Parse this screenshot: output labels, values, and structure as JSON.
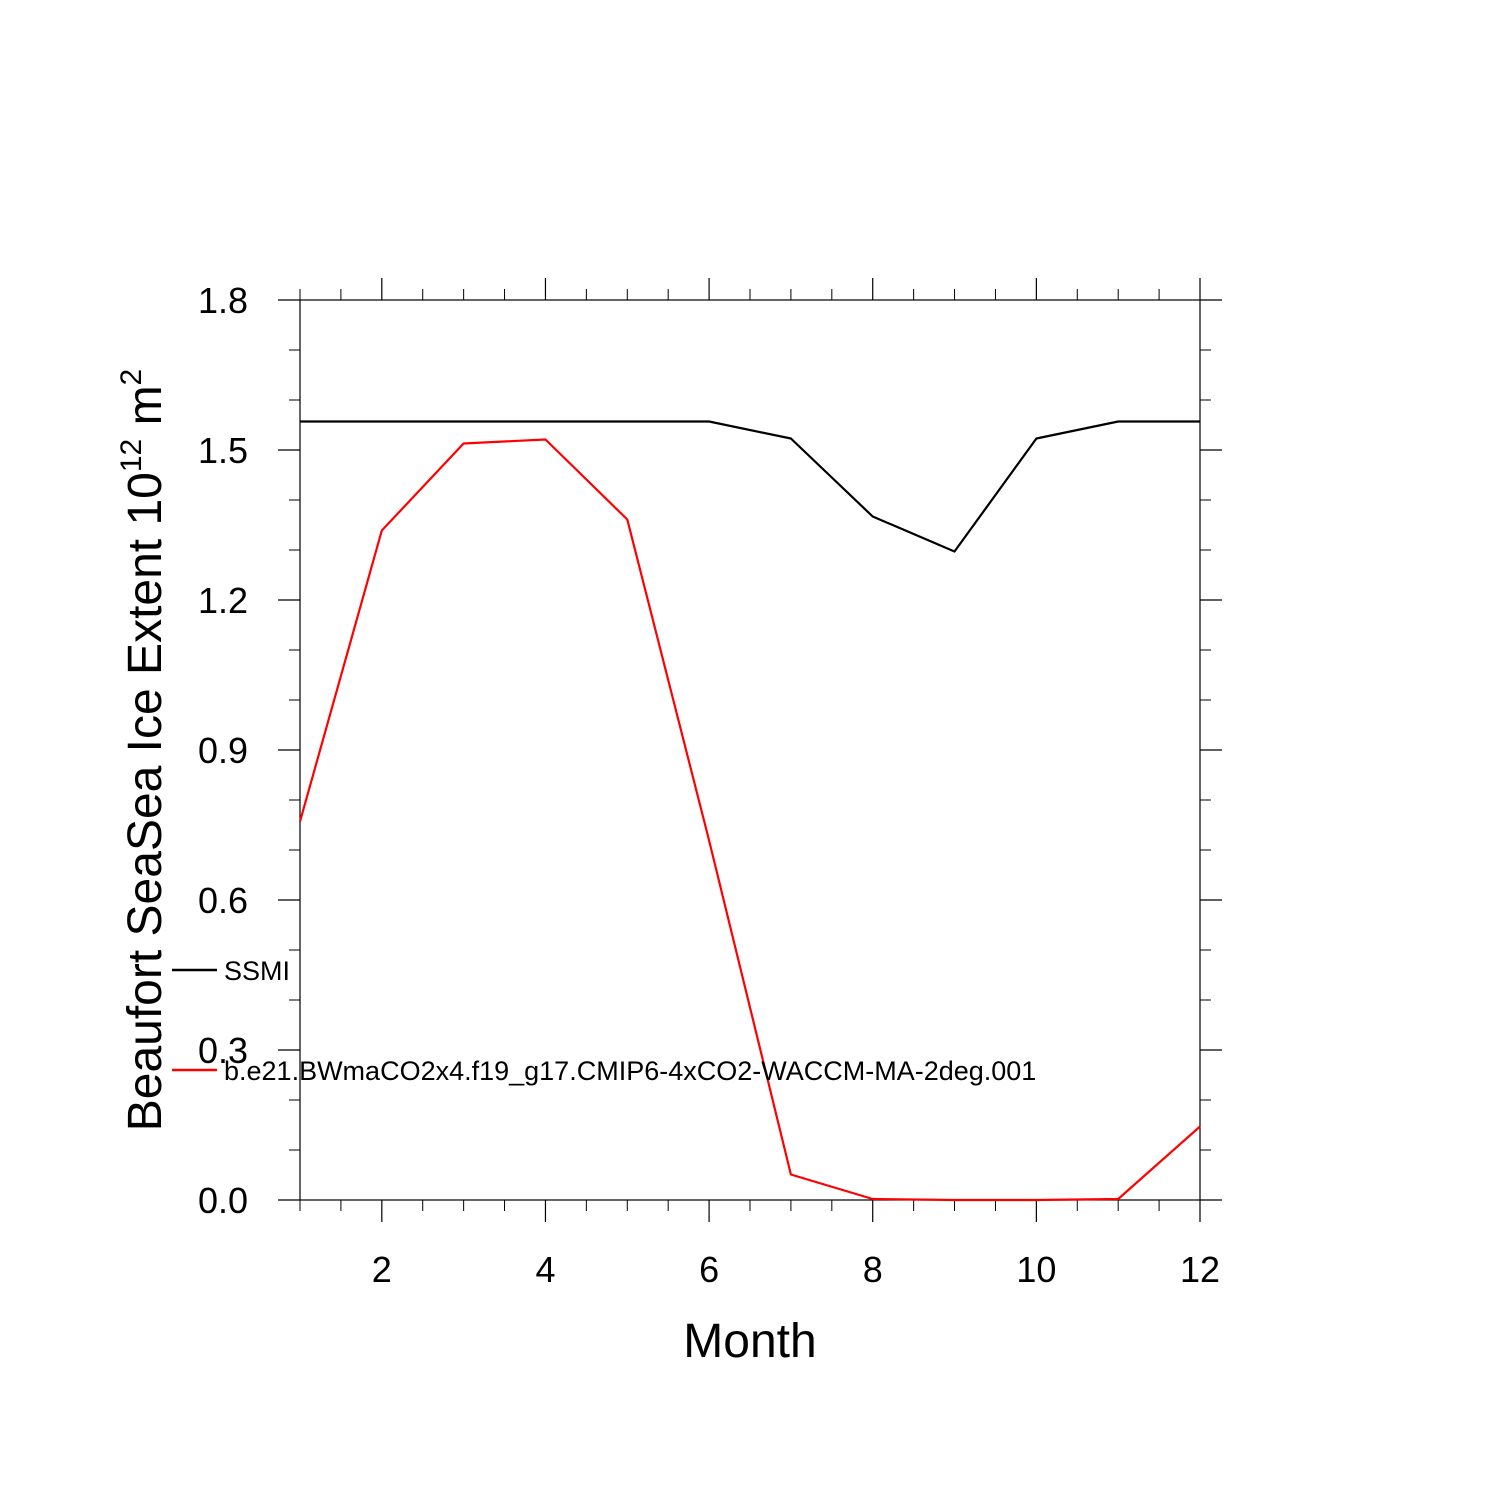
{
  "chart_data": {
    "type": "line",
    "title": "",
    "xlabel": "Month",
    "ylabel_main": "Beaufort SeaSea Ice Extent 10",
    "ylabel_sup": "12",
    "ylabel_unit": " m",
    "ylabel_unit_sup": "2",
    "xlim": [
      1,
      12
    ],
    "ylim": [
      0.0,
      1.8
    ],
    "x_ticks": [
      2,
      4,
      6,
      8,
      10,
      12
    ],
    "x_tick_labels": [
      "2",
      "4",
      "6",
      "8",
      "10",
      "12"
    ],
    "y_ticks": [
      0.0,
      0.3,
      0.6,
      0.9,
      1.2,
      1.5,
      1.8
    ],
    "y_tick_labels": [
      "0.0",
      "0.3",
      "0.6",
      "0.9",
      "1.2",
      "1.5",
      "1.8"
    ],
    "x": [
      1,
      2,
      3,
      4,
      5,
      6,
      7,
      8,
      9,
      10,
      11,
      12
    ],
    "series": [
      {
        "name": "SSMI",
        "color": "#000000",
        "values": [
          1.557,
          1.557,
          1.557,
          1.557,
          1.557,
          1.557,
          1.523,
          1.367,
          1.297,
          1.523,
          1.557,
          1.557
        ]
      },
      {
        "name": "b.e21.BWmaCO2x4.f19_g17.CMIP6-4xCO2-WACCM-MA-2deg.001",
        "color": "#ff0000",
        "values": [
          0.757,
          1.339,
          1.513,
          1.521,
          1.361,
          0.719,
          0.051,
          0.002,
          0.0,
          0.0,
          0.002,
          0.147
        ]
      }
    ],
    "legend_position": "left, inside plot",
    "grid": false
  }
}
